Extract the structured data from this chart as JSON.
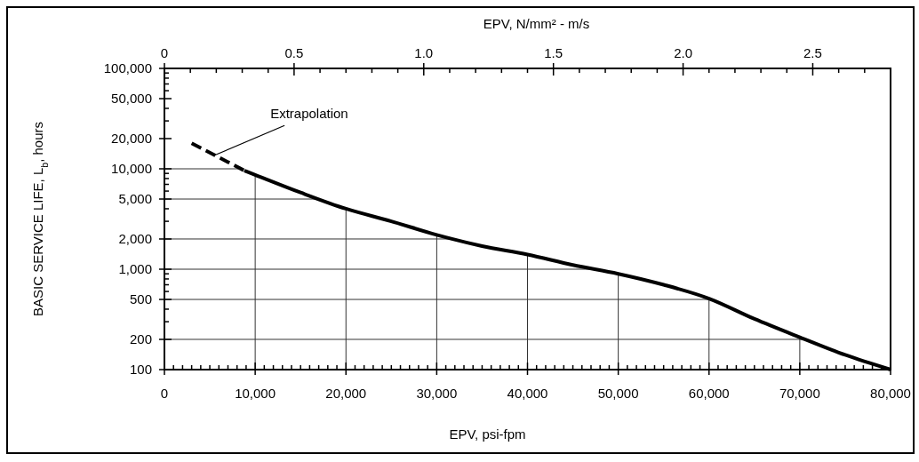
{
  "chart_data": {
    "type": "line",
    "xlabel": "EPV, psi-fpm",
    "ylabel": "BASIC SERVICE LIFE, L$_{b}$, hours",
    "x2label": "EPV, N/mm² - m/s",
    "log": "y",
    "grid": true,
    "xlim": [
      0,
      80000
    ],
    "ylim": [
      100,
      100000
    ],
    "x2lim": [
      0,
      2.8
    ],
    "xticks": [
      0,
      {
        "value": 1000,
        "label": null
      },
      {
        "value": 2000,
        "label": null
      },
      {
        "value": 3000,
        "label": null
      },
      {
        "value": 4000,
        "label": null
      },
      {
        "value": 5000,
        "label": null
      },
      {
        "value": 6000,
        "label": null
      },
      {
        "value": 7000,
        "label": null
      },
      {
        "value": 8000,
        "label": null
      },
      {
        "value": 9000,
        "label": null
      },
      {
        "value": 10000,
        "label": "10,000"
      },
      {
        "value": 11000,
        "label": null
      },
      {
        "value": 12000,
        "label": null
      },
      {
        "value": 13000,
        "label": null
      },
      {
        "value": 14000,
        "label": null
      },
      {
        "value": 15000,
        "label": null
      },
      {
        "value": 16000,
        "label": null
      },
      {
        "value": 17000,
        "label": null
      },
      {
        "value": 18000,
        "label": null
      },
      {
        "value": 19000,
        "label": null
      },
      {
        "value": 20000,
        "label": "20,000"
      },
      {
        "value": 21000,
        "label": null
      },
      {
        "value": 22000,
        "label": null
      },
      {
        "value": 23000,
        "label": null
      },
      {
        "value": 24000,
        "label": null
      },
      {
        "value": 25000,
        "label": null
      },
      {
        "value": 26000,
        "label": null
      },
      {
        "value": 27000,
        "label": null
      },
      {
        "value": 28000,
        "label": null
      },
      {
        "value": 29000,
        "label": null
      },
      {
        "value": 30000,
        "label": "30,000"
      },
      {
        "value": 31000,
        "label": null
      },
      {
        "value": 32000,
        "label": null
      },
      {
        "value": 33000,
        "label": null
      },
      {
        "value": 34000,
        "label": null
      },
      {
        "value": 35000,
        "label": null
      },
      {
        "value": 36000,
        "label": null
      },
      {
        "value": 37000,
        "label": null
      },
      {
        "value": 38000,
        "label": null
      },
      {
        "value": 39000,
        "label": null
      },
      {
        "value": 40000,
        "label": "40,000"
      },
      {
        "value": 41000,
        "label": null
      },
      {
        "value": 42000,
        "label": null
      },
      {
        "value": 43000,
        "label": null
      },
      {
        "value": 44000,
        "label": null
      },
      {
        "value": 45000,
        "label": null
      },
      {
        "value": 46000,
        "label": null
      },
      {
        "value": 47000,
        "label": null
      },
      {
        "value": 48000,
        "label": null
      },
      {
        "value": 49000,
        "label": null
      },
      {
        "value": 50000,
        "label": "50,000"
      },
      {
        "value": 51000,
        "label": null
      },
      {
        "value": 52000,
        "label": null
      },
      {
        "value": 53000,
        "label": null
      },
      {
        "value": 54000,
        "label": null
      },
      {
        "value": 55000,
        "label": null
      },
      {
        "value": 56000,
        "label": null
      },
      {
        "value": 57000,
        "label": null
      },
      {
        "value": 58000,
        "label": null
      },
      {
        "value": 59000,
        "label": null
      },
      {
        "value": 60000,
        "label": "60,000"
      },
      {
        "value": 61000,
        "label": null
      },
      {
        "value": 62000,
        "label": null
      },
      {
        "value": 63000,
        "label": null
      },
      {
        "value": 64000,
        "label": null
      },
      {
        "value": 65000,
        "label": null
      },
      {
        "value": 66000,
        "label": null
      },
      {
        "value": 67000,
        "label": null
      },
      {
        "value": 68000,
        "label": null
      },
      {
        "value": 69000,
        "label": null
      },
      {
        "value": 70000,
        "label": "70,000"
      },
      {
        "value": 71000,
        "label": null
      },
      {
        "value": 72000,
        "label": null
      },
      {
        "value": 73000,
        "label": null
      },
      {
        "value": 74000,
        "label": null
      },
      {
        "value": 75000,
        "label": null
      },
      {
        "value": 76000,
        "label": null
      },
      {
        "value": 77000,
        "label": null
      },
      {
        "value": 78000,
        "label": null
      },
      {
        "value": 79000,
        "label": null
      },
      {
        "value": 80000,
        "label": "80,000"
      }
    ],
    "x2ticks": [
      0,
      {
        "value": 0.1,
        "label": null
      },
      {
        "value": 0.2,
        "label": null
      },
      {
        "value": 0.3,
        "label": null
      },
      {
        "value": 0.4,
        "label": null
      },
      0.5,
      {
        "value": 0.6,
        "label": null
      },
      {
        "value": 0.7,
        "label": null
      },
      {
        "value": 0.8,
        "label": null
      },
      {
        "value": 0.9,
        "label": null
      },
      {
        "value": 1,
        "label": "1.0"
      },
      {
        "value": 1.1,
        "label": null
      },
      {
        "value": 1.2,
        "label": null
      },
      {
        "value": 1.3,
        "label": null
      },
      {
        "value": 1.4,
        "label": null
      },
      1.5,
      {
        "value": 1.6,
        "label": null
      },
      {
        "value": 1.7,
        "label": null
      },
      {
        "value": 1.8,
        "label": null
      },
      {
        "value": 1.9,
        "label": null
      },
      {
        "value": 2,
        "label": "2.0"
      },
      {
        "value": 2.1,
        "label": null
      },
      {
        "value": 2.2,
        "label": null
      },
      {
        "value": 2.3,
        "label": null
      },
      {
        "value": 2.4,
        "label": null
      },
      2.5,
      {
        "value": 2.6,
        "label": null
      },
      {
        "value": 2.7,
        "label": null
      },
      {
        "value": 2.8,
        "label": null
      }
    ],
    "yticks": [
      100,
      200,
      {
        "value": 300,
        "label": null
      },
      {
        "value": 400,
        "label": null
      },
      500,
      {
        "value": 600,
        "label": null
      },
      {
        "value": 700,
        "label": null
      },
      {
        "value": 800,
        "label": null
      },
      {
        "value": 900,
        "label": null
      },
      {
        "value": 1000,
        "label": "1,000"
      },
      {
        "value": 2000,
        "label": "2,000"
      },
      {
        "value": 3000,
        "label": null
      },
      {
        "value": 4000,
        "label": null
      },
      {
        "value": 5000,
        "label": "5,000"
      },
      {
        "value": 6000,
        "label": null
      },
      {
        "value": 7000,
        "label": null
      },
      {
        "value": 8000,
        "label": null
      },
      {
        "value": 9000,
        "label": null
      },
      {
        "value": 10000,
        "label": "10,000"
      },
      {
        "value": 20000,
        "label": "20,000"
      },
      {
        "value": 30000,
        "label": null
      },
      {
        "value": 40000,
        "label": null
      },
      {
        "value": 50000,
        "label": "50,000"
      },
      {
        "value": 60000,
        "label": null
      },
      {
        "value": 70000,
        "label": null
      },
      {
        "value": 80000,
        "label": null
      },
      {
        "value": 90000,
        "label": null
      },
      {
        "value": 100000,
        "label": "100,000"
      }
    ],
    "series": [
      {
        "color": "#000000",
        "line_style": "dashed",
        "x": [
          3000,
          8800
        ],
        "values": [
          18000,
          9600
        ]
      },
      {
        "color": "#000000",
        "line_style": "solid",
        "x": [
          8800,
          10000,
          15000,
          20000,
          25000,
          30000,
          35000,
          40000,
          45000,
          50000,
          55000,
          60000,
          65000,
          70000,
          75000,
          80000
        ],
        "values": [
          9600,
          8700,
          5800,
          4000,
          3000,
          2200,
          1700,
          1400,
          1100,
          900,
          700,
          510,
          320,
          210,
          140,
          100
        ]
      }
    ],
    "annotations": [
      {
        "text": "Extrapolation",
        "x": 5400,
        "y": 13500
      }
    ]
  }
}
